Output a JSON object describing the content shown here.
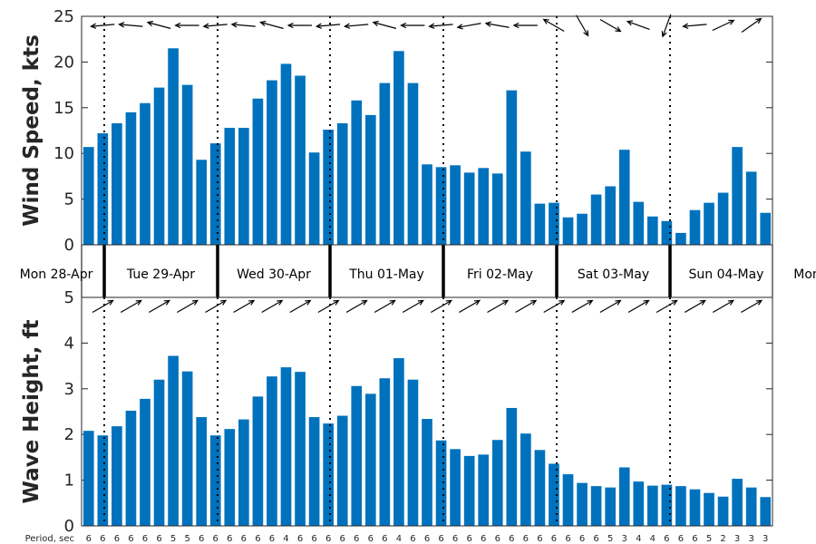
{
  "chart_data": [
    {
      "type": "bar",
      "panel": "wind",
      "ylabel": "Wind Speed, kts",
      "ylim": [
        0,
        25
      ],
      "yticks": [
        "0",
        "5",
        "10",
        "15",
        "20",
        "25"
      ],
      "bar_color": "#0072BD",
      "values": [
        10.7,
        12.2,
        13.3,
        14.5,
        15.5,
        17.2,
        21.5,
        17.5,
        9.3,
        11.1,
        12.8,
        12.8,
        16.0,
        18.0,
        19.8,
        18.5,
        10.1,
        12.6,
        13.3,
        15.8,
        14.2,
        17.7,
        21.2,
        17.7,
        8.8,
        8.5,
        8.7,
        7.9,
        8.4,
        7.8,
        16.9,
        10.2,
        4.5,
        4.6,
        3.0,
        3.4,
        5.5,
        6.4,
        10.4,
        4.7,
        3.1,
        2.6,
        1.3,
        3.8,
        4.6,
        5.7,
        10.7,
        8.0,
        3.5
      ],
      "direction_deg": [
        265,
        265,
        265,
        275,
        280,
        285,
        270,
        270,
        270,
        265,
        265,
        275,
        280,
        285,
        275,
        270,
        270,
        265,
        265,
        265,
        270,
        285,
        275,
        270,
        270,
        265,
        265,
        260,
        290,
        280,
        290,
        270,
        280,
        300,
        170,
        150,
        110,
        120,
        300,
        290,
        290,
        200,
        245,
        265,
        90,
        65,
        60,
        55,
        55
      ]
    },
    {
      "type": "bar",
      "panel": "wave",
      "ylabel": "Wave Height, ft",
      "ylim": [
        0,
        5
      ],
      "yticks": [
        "0",
        "1",
        "2",
        "3",
        "4",
        "5"
      ],
      "bar_color": "#0072BD",
      "values": [
        2.08,
        1.98,
        2.18,
        2.52,
        2.78,
        3.2,
        3.72,
        3.38,
        2.38,
        1.98,
        2.12,
        2.33,
        2.83,
        3.27,
        3.47,
        3.37,
        2.38,
        2.24,
        2.41,
        3.06,
        2.89,
        3.23,
        3.67,
        3.2,
        2.34,
        1.87,
        1.68,
        1.53,
        1.56,
        1.88,
        2.58,
        2.02,
        1.66,
        1.36,
        1.13,
        0.94,
        0.87,
        0.84,
        1.28,
        0.97,
        0.88,
        0.9,
        0.87,
        0.8,
        0.72,
        0.64,
        1.03,
        0.84,
        0.63
      ],
      "direction_deg": [
        60,
        60,
        60,
        60,
        60,
        60,
        60,
        60,
        60,
        60,
        60,
        60,
        60,
        60,
        60,
        60,
        60,
        60,
        60,
        60,
        60,
        60,
        60,
        60,
        60,
        60,
        60,
        60,
        60,
        60,
        60,
        60,
        60,
        60,
        60,
        60,
        60,
        60,
        60,
        60,
        60,
        60,
        60,
        60,
        60,
        60,
        60,
        60,
        60
      ]
    }
  ],
  "days": [
    "Mon 28-Apr",
    "Tue 29-Apr",
    "Wed 30-Apr",
    "Thu 01-May",
    "Fri 02-May",
    "Sat 03-May",
    "Sun 04-May",
    "Mon"
  ],
  "period_label": "Period, sec",
  "periods": [
    "6",
    "6",
    "6",
    "6",
    "6",
    "6",
    "5",
    "5",
    "6",
    "6",
    "6",
    "6",
    "6",
    "6",
    "4",
    "6",
    "6",
    "6",
    "6",
    "6",
    "6",
    "6",
    "4",
    "6",
    "6",
    "6",
    "6",
    "6",
    "6",
    "6",
    "6",
    "6",
    "6",
    "6",
    "6",
    "6",
    "6",
    "5",
    "3",
    "4",
    "4",
    "6",
    "6",
    "6",
    "5",
    "2",
    "3",
    "3",
    "3"
  ]
}
